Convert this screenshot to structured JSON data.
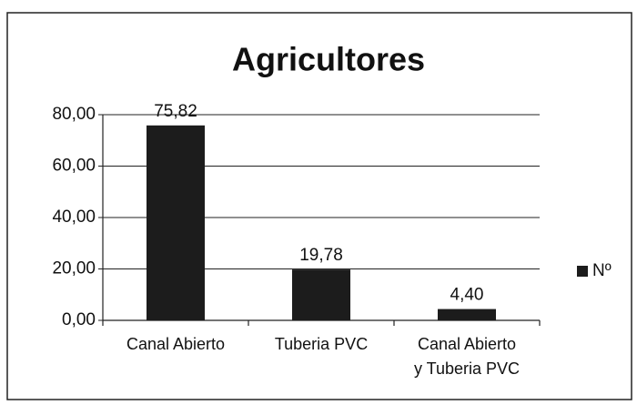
{
  "chart_data": {
    "type": "bar",
    "title": "Agricultores",
    "categories": [
      "Canal Abierto",
      "Tuberia PVC",
      "Canal Abierto y Tuberia PVC"
    ],
    "series": [
      {
        "name": "Nº",
        "color": "#1c1c1c",
        "values": [
          75.82,
          19.78,
          4.4
        ],
        "value_labels": [
          "75,82",
          "19,78",
          "4,40"
        ]
      }
    ],
    "ylim": [
      0,
      80
    ],
    "yticks": [
      {
        "value": 0,
        "label": "0,00"
      },
      {
        "value": 20,
        "label": "20,00"
      },
      {
        "value": 40,
        "label": "40,00"
      },
      {
        "value": 60,
        "label": "60,00"
      },
      {
        "value": 80,
        "label": "80,00"
      }
    ],
    "grid": true,
    "legend": "right"
  }
}
